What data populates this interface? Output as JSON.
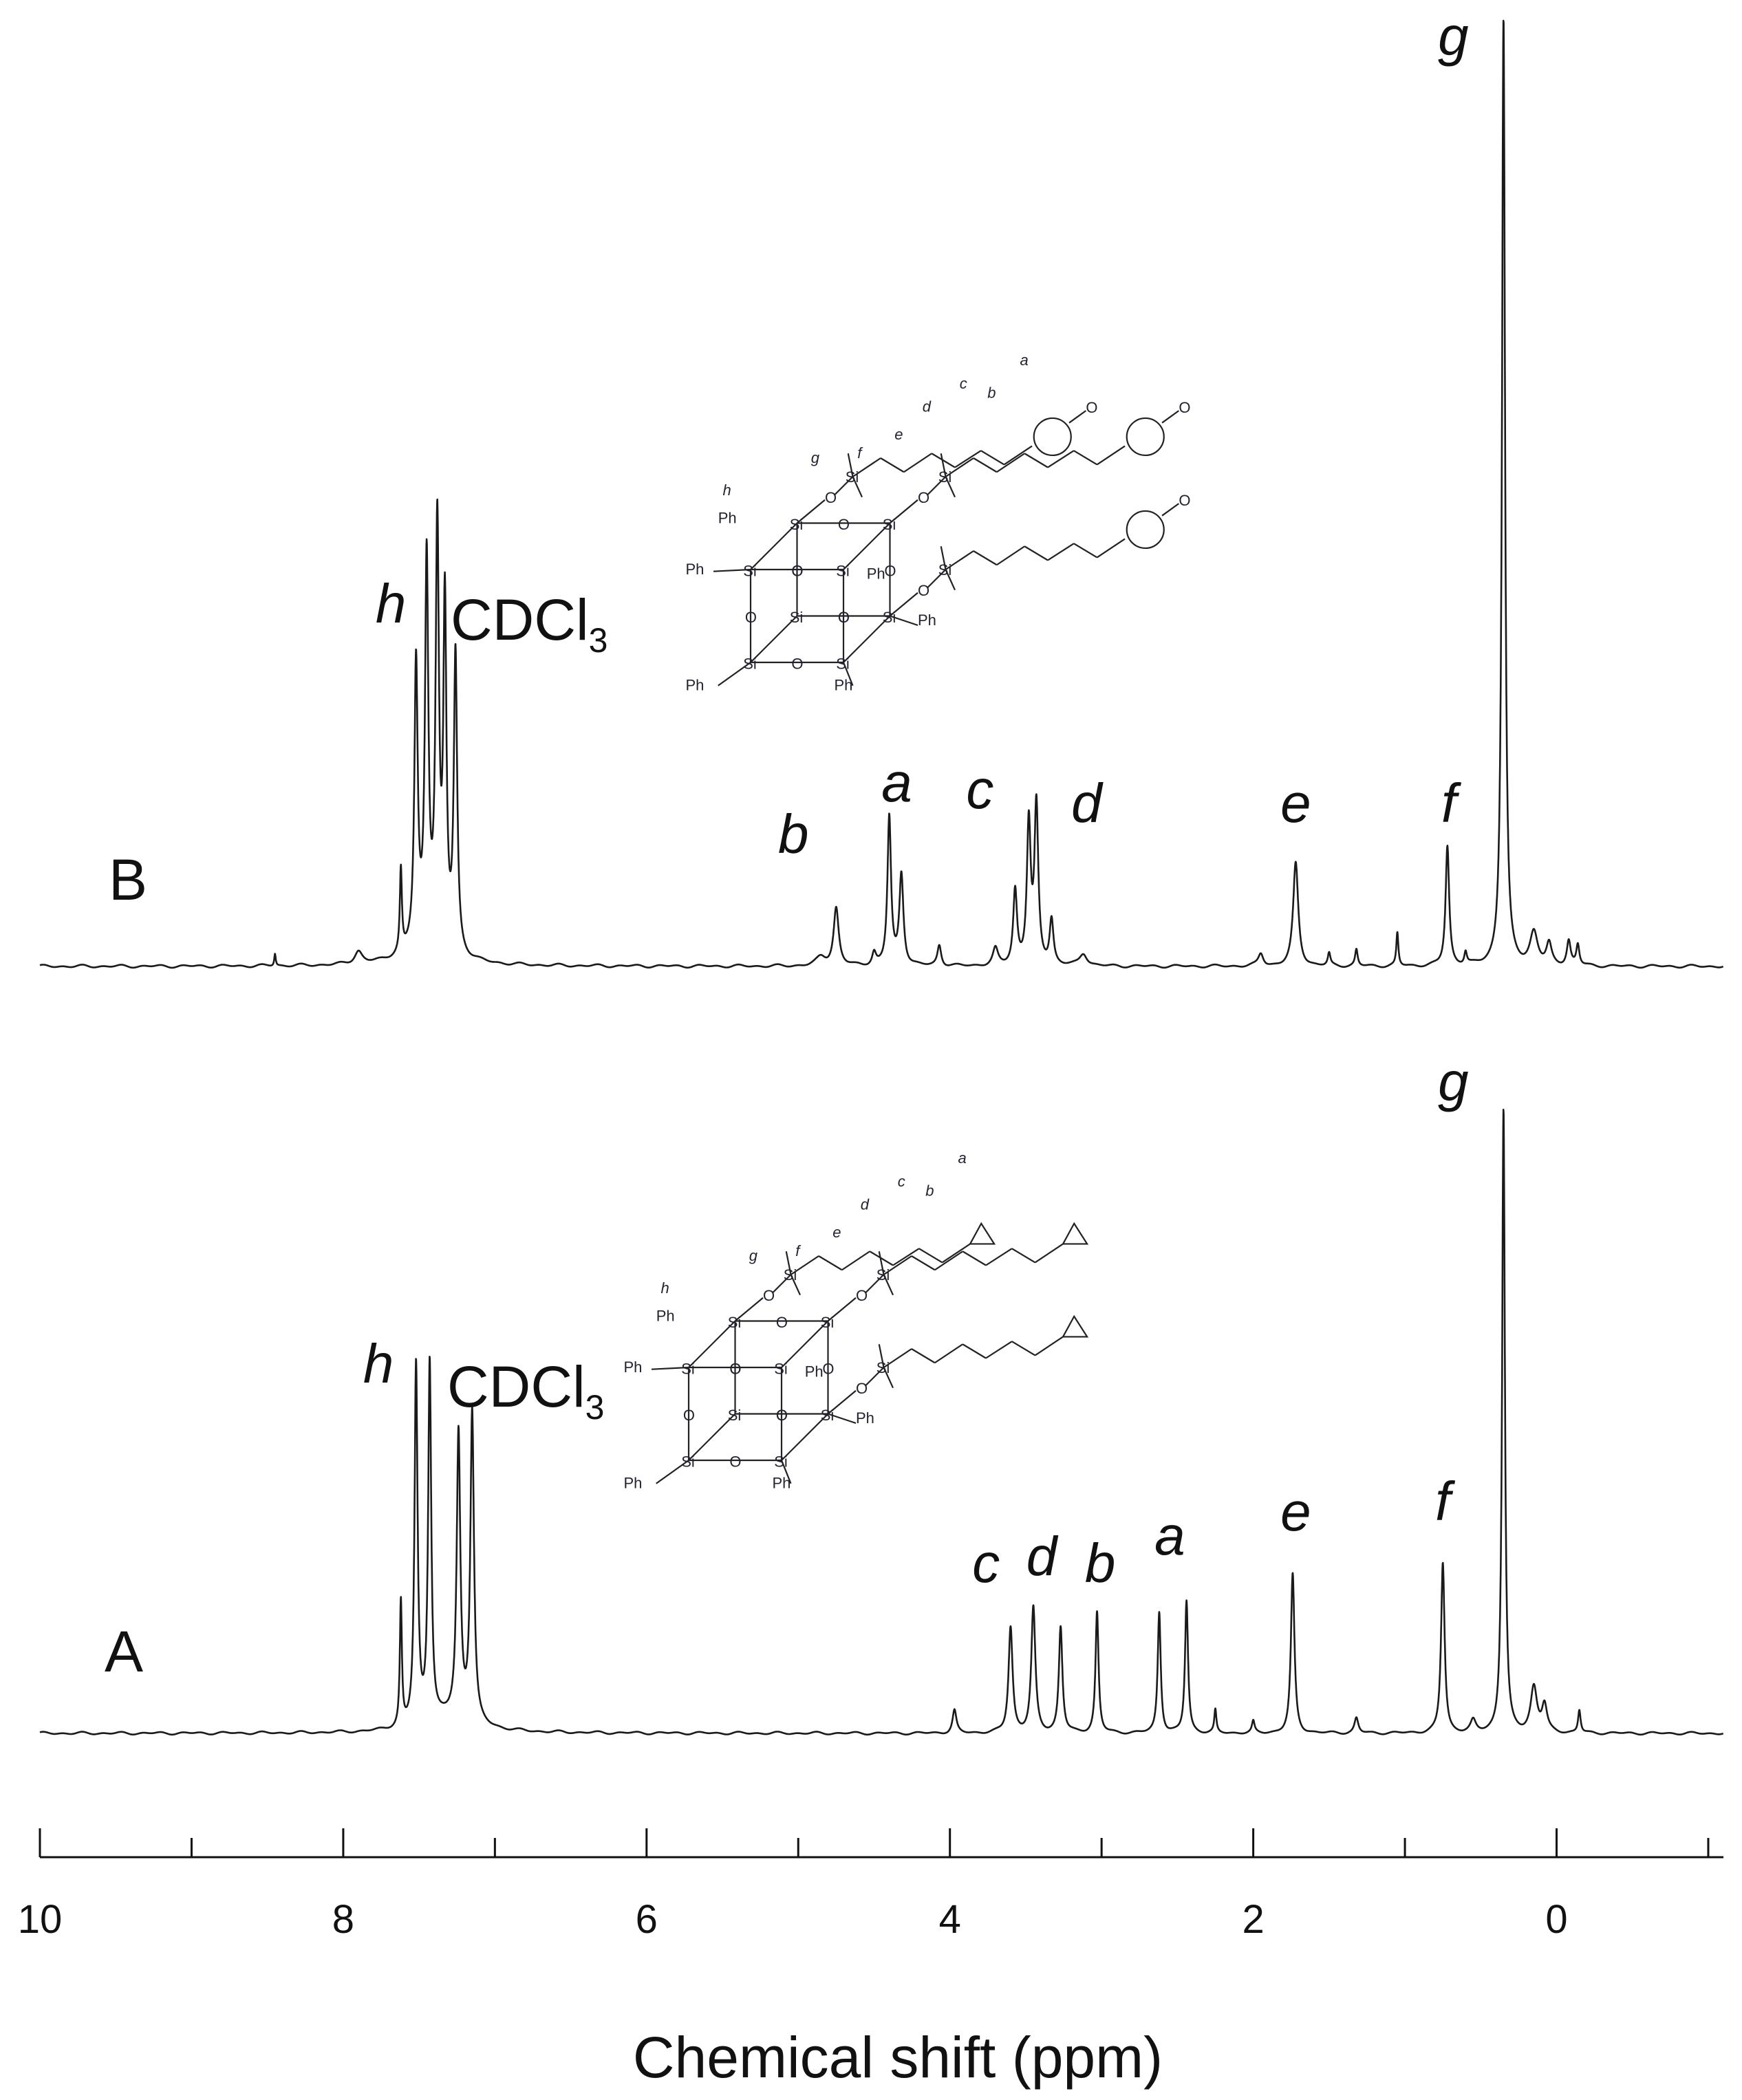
{
  "chart_data": {
    "type": "line",
    "xlabel": "Chemical shift (ppm)",
    "xlim": [
      10,
      -1.1
    ],
    "x_reversed": true,
    "x_ticks": [
      10,
      8,
      6,
      4,
      2,
      0
    ],
    "x_minor_ticks": [
      9,
      7,
      5,
      3,
      1,
      -1
    ],
    "grid": false,
    "series": [
      {
        "name": "B",
        "solvent_label": "CDCl",
        "solvent_sub": "3",
        "peaks": [
          {
            "ppm": 8.45,
            "height": 0.03,
            "w": 0.006
          },
          {
            "ppm": 7.9,
            "height": 0.03,
            "w": 0.03
          },
          {
            "ppm": 7.62,
            "height": 0.2,
            "w": 0.008
          },
          {
            "ppm": 7.52,
            "height": 0.68,
            "w": 0.013
          },
          {
            "ppm": 7.45,
            "height": 0.92,
            "w": 0.013
          },
          {
            "ppm": 7.38,
            "height": 1.0,
            "w": 0.013
          },
          {
            "ppm": 7.33,
            "height": 0.82,
            "w": 0.012
          },
          {
            "ppm": 7.26,
            "height": 0.72,
            "w": 0.013
          },
          {
            "ppm": 7.45,
            "height": 0.05,
            "w": 0.16
          },
          {
            "ppm": 4.75,
            "height": 0.14,
            "w": 0.02
          },
          {
            "ppm": 4.85,
            "height": 0.02,
            "w": 0.04
          },
          {
            "ppm": 4.5,
            "height": 0.03,
            "w": 0.015
          },
          {
            "ppm": 4.4,
            "height": 0.36,
            "w": 0.014
          },
          {
            "ppm": 4.32,
            "height": 0.22,
            "w": 0.016
          },
          {
            "ppm": 4.07,
            "height": 0.05,
            "w": 0.015
          },
          {
            "ppm": 3.7,
            "height": 0.04,
            "w": 0.02
          },
          {
            "ppm": 3.57,
            "height": 0.18,
            "w": 0.015
          },
          {
            "ppm": 3.48,
            "height": 0.34,
            "w": 0.015
          },
          {
            "ppm": 3.43,
            "height": 0.38,
            "w": 0.015
          },
          {
            "ppm": 3.33,
            "height": 0.11,
            "w": 0.015
          },
          {
            "ppm": 3.12,
            "height": 0.03,
            "w": 0.03
          },
          {
            "ppm": 1.95,
            "height": 0.03,
            "w": 0.02
          },
          {
            "ppm": 1.72,
            "height": 0.25,
            "w": 0.02
          },
          {
            "ppm": 1.5,
            "height": 0.03,
            "w": 0.01
          },
          {
            "ppm": 1.32,
            "height": 0.04,
            "w": 0.01
          },
          {
            "ppm": 1.05,
            "height": 0.08,
            "w": 0.008
          },
          {
            "ppm": 0.72,
            "height": 0.29,
            "w": 0.014
          },
          {
            "ppm": 0.6,
            "height": 0.03,
            "w": 0.01
          },
          {
            "ppm": 0.35,
            "height": 2.3,
            "w": 0.012
          },
          {
            "ppm": 0.15,
            "height": 0.08,
            "w": 0.03
          },
          {
            "ppm": 0.05,
            "height": 0.05,
            "w": 0.02
          },
          {
            "ppm": -0.08,
            "height": 0.06,
            "w": 0.015
          },
          {
            "ppm": -0.14,
            "height": 0.05,
            "w": 0.012
          }
        ],
        "labels": [
          {
            "text": "h",
            "ppm": 7.45
          },
          {
            "text": "b",
            "ppm": 4.95
          },
          {
            "text": "a",
            "ppm": 4.35
          },
          {
            "text": "c",
            "ppm": 3.72
          },
          {
            "text": "d",
            "ppm": 3.28
          },
          {
            "text": "e",
            "ppm": 1.72
          },
          {
            "text": "f",
            "ppm": 0.71
          },
          {
            "text": "g",
            "ppm": 0.4
          }
        ]
      },
      {
        "name": "A",
        "solvent_label": "CDCl",
        "solvent_sub": "3",
        "peaks": [
          {
            "ppm": 7.62,
            "height": 0.33,
            "w": 0.008
          },
          {
            "ppm": 7.52,
            "height": 0.95,
            "w": 0.012
          },
          {
            "ppm": 7.43,
            "height": 0.95,
            "w": 0.012
          },
          {
            "ppm": 7.24,
            "height": 0.75,
            "w": 0.014
          },
          {
            "ppm": 7.15,
            "height": 0.82,
            "w": 0.014
          },
          {
            "ppm": 7.3,
            "height": 0.04,
            "w": 0.2
          },
          {
            "ppm": 3.97,
            "height": 0.06,
            "w": 0.015
          },
          {
            "ppm": 3.6,
            "height": 0.28,
            "w": 0.016
          },
          {
            "ppm": 3.45,
            "height": 0.33,
            "w": 0.016
          },
          {
            "ppm": 3.27,
            "height": 0.28,
            "w": 0.014
          },
          {
            "ppm": 3.03,
            "height": 0.32,
            "w": 0.012
          },
          {
            "ppm": 2.62,
            "height": 0.32,
            "w": 0.012
          },
          {
            "ppm": 2.44,
            "height": 0.35,
            "w": 0.012
          },
          {
            "ppm": 2.25,
            "height": 0.06,
            "w": 0.008
          },
          {
            "ppm": 2.0,
            "height": 0.03,
            "w": 0.01
          },
          {
            "ppm": 1.74,
            "height": 0.42,
            "w": 0.014
          },
          {
            "ppm": 1.32,
            "height": 0.04,
            "w": 0.015
          },
          {
            "ppm": 0.75,
            "height": 0.45,
            "w": 0.014
          },
          {
            "ppm": 0.55,
            "height": 0.03,
            "w": 0.02
          },
          {
            "ppm": 0.35,
            "height": 1.65,
            "w": 0.011
          },
          {
            "ppm": 0.15,
            "height": 0.12,
            "w": 0.025
          },
          {
            "ppm": 0.08,
            "height": 0.07,
            "w": 0.02
          },
          {
            "ppm": -0.15,
            "height": 0.06,
            "w": 0.01
          }
        ],
        "labels": [
          {
            "text": "h",
            "ppm": 7.55
          },
          {
            "text": "c",
            "ppm": 3.68
          },
          {
            "text": "d",
            "ppm": 3.45
          },
          {
            "text": "b",
            "ppm": 3.1
          },
          {
            "text": "a",
            "ppm": 2.55
          },
          {
            "text": "e",
            "ppm": 1.72
          },
          {
            "text": "f",
            "ppm": 0.75
          },
          {
            "text": "g",
            "ppm": 0.4
          }
        ]
      }
    ]
  },
  "structure_B": {
    "substituent_labels": [
      "h",
      "g",
      "f",
      "e",
      "d",
      "c",
      "b",
      "a"
    ],
    "ph_label": "Ph",
    "si_label": "Si",
    "o_label": "O"
  },
  "structure_A": {
    "substituent_labels": [
      "h",
      "g",
      "f",
      "e",
      "d",
      "c",
      "b",
      "a"
    ],
    "ph_label": "Ph",
    "si_label": "Si",
    "o_label": "O"
  }
}
